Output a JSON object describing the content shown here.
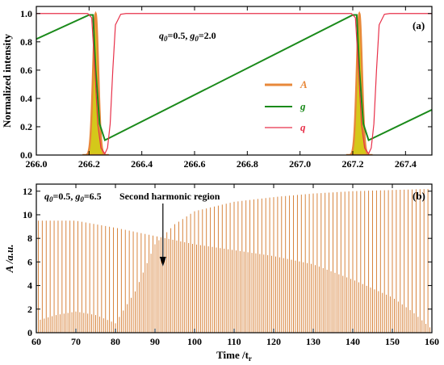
{
  "chart_data": [
    {
      "type": "line",
      "panel_label": "(a)",
      "annotation": {
        "q_symbol": "q",
        "q_sub": "0",
        "q_value": "=0.5, ",
        "g_symbol": "g",
        "g_sub": "0",
        "g_value": "=2.0"
      },
      "ylabel": "Normalized intensity",
      "xlabel": "",
      "xlim": [
        266.0,
        267.5
      ],
      "ylim": [
        0.0,
        1.05
      ],
      "xticks": [
        "266.0",
        "266.2",
        "266.4",
        "266.6",
        "266.8",
        "267.0",
        "267.2",
        "267.4"
      ],
      "yticks": [
        "0.0",
        "0.2",
        "0.4",
        "0.6",
        "0.8",
        "1.0"
      ],
      "legend_position": "center-right",
      "series": [
        {
          "name": "A",
          "color": "#e8883a",
          "fill": "#d4c81a",
          "pulse_centers": [
            266.225,
            267.225
          ],
          "pulse_width": 0.014,
          "peak": 1.0
        },
        {
          "name": "g",
          "color": "#1a8a1a",
          "points": [
            [
              266.0,
              0.82
            ],
            [
              266.2,
              0.99
            ],
            [
              266.215,
              0.99
            ],
            [
              266.225,
              0.6
            ],
            [
              266.24,
              0.22
            ],
            [
              266.26,
              0.105
            ],
            [
              267.2,
              0.99
            ],
            [
              267.215,
              0.99
            ],
            [
              267.225,
              0.6
            ],
            [
              267.24,
              0.22
            ],
            [
              267.26,
              0.105
            ],
            [
              267.5,
              0.32
            ]
          ]
        },
        {
          "name": "q",
          "color": "#e8314a",
          "points": [
            [
              266.0,
              1.0
            ],
            [
              266.195,
              1.0
            ],
            [
              266.21,
              0.97
            ],
            [
              266.222,
              0.6
            ],
            [
              266.233,
              0.22
            ],
            [
              266.245,
              0.05
            ],
            [
              266.26,
              0.01
            ],
            [
              266.27,
              0.05
            ],
            [
              266.28,
              0.22
            ],
            [
              266.29,
              0.6
            ],
            [
              266.3,
              0.92
            ],
            [
              266.32,
              0.995
            ],
            [
              266.34,
              1.0
            ],
            [
              267.195,
              1.0
            ],
            [
              267.21,
              0.97
            ],
            [
              267.222,
              0.6
            ],
            [
              267.233,
              0.22
            ],
            [
              267.245,
              0.05
            ],
            [
              267.26,
              0.01
            ],
            [
              267.27,
              0.05
            ],
            [
              267.28,
              0.22
            ],
            [
              267.29,
              0.6
            ],
            [
              267.3,
              0.92
            ],
            [
              267.32,
              0.995
            ],
            [
              267.34,
              1.0
            ],
            [
              267.5,
              1.0
            ]
          ]
        }
      ]
    },
    {
      "type": "line",
      "panel_label": "(b)",
      "annotation": {
        "q_symbol": "q",
        "q_sub": "0",
        "q_value": "=0.5, ",
        "g_symbol": "g",
        "g_sub": "0",
        "g_value": "=6.5"
      },
      "region_label": "Second harmonic region",
      "region_arrow_x": 92,
      "ylabel": "A /a.u.",
      "xlabel": "Time /t",
      "xlabel_sub": "r",
      "xlim": [
        60,
        160
      ],
      "ylim": [
        0,
        12.6
      ],
      "xticks": [
        "60",
        "70",
        "80",
        "90",
        "100",
        "110",
        "120",
        "130",
        "140",
        "150",
        "160"
      ],
      "yticks": [
        "0",
        "2",
        "4",
        "6",
        "8",
        "10",
        "12"
      ],
      "series": [
        {
          "name": "A",
          "color": "#d4782a",
          "pulse_spacing": 1.0,
          "first_pulse": 60.5,
          "main_envelope": [
            [
              60,
              9.5
            ],
            [
              70,
              9.5
            ],
            [
              80,
              8.9
            ],
            [
              90,
              8.2
            ],
            [
              100,
              7.5
            ],
            [
              110,
              7.0
            ],
            [
              120,
              6.5
            ],
            [
              130,
              5.8
            ],
            [
              140,
              4.5
            ],
            [
              150,
              3.0
            ],
            [
              155,
              1.8
            ],
            [
              160,
              0.3
            ]
          ],
          "second_envelope": [
            [
              60,
              1.0
            ],
            [
              65,
              1.5
            ],
            [
              70,
              1.8
            ],
            [
              75,
              1.5
            ],
            [
              80,
              0.8
            ],
            [
              85,
              3.5
            ],
            [
              90,
              7.5
            ],
            [
              95,
              9.2
            ],
            [
              100,
              10.3
            ],
            [
              110,
              11.1
            ],
            [
              120,
              11.5
            ],
            [
              130,
              11.8
            ],
            [
              140,
              12.0
            ],
            [
              150,
              12.1
            ],
            [
              160,
              12.2
            ]
          ]
        }
      ]
    }
  ]
}
